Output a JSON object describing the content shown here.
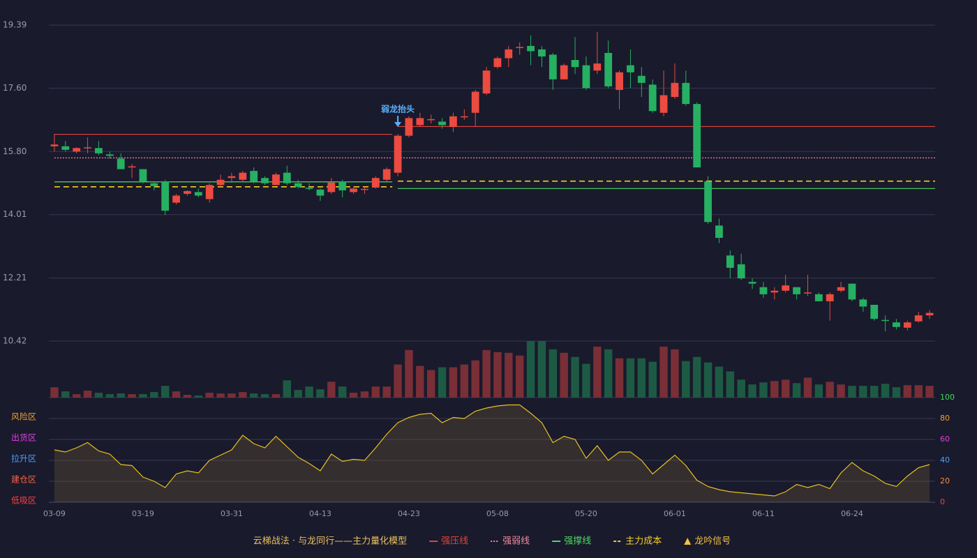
{
  "chart_data": {
    "type": "candlestick",
    "categories": [
      "03-09",
      null,
      null,
      null,
      null,
      null,
      null,
      null,
      "03-19",
      null,
      null,
      null,
      null,
      null,
      null,
      null,
      "03-31",
      null,
      null,
      null,
      null,
      null,
      null,
      null,
      "04-13",
      null,
      null,
      null,
      null,
      null,
      null,
      null,
      "04-23",
      null,
      null,
      null,
      null,
      null,
      null,
      null,
      "05-08",
      null,
      null,
      null,
      null,
      null,
      null,
      null,
      "05-20",
      null,
      null,
      null,
      null,
      null,
      null,
      null,
      "06-01",
      null,
      null,
      null,
      null,
      null,
      null,
      null,
      "06-11",
      null,
      null,
      null,
      null,
      null,
      null,
      null,
      "06-24",
      null,
      null,
      null,
      null,
      null,
      null,
      null
    ],
    "open": [
      15.95,
      15.95,
      15.8,
      15.9,
      15.9,
      15.72,
      15.6,
      15.35,
      15.3,
      14.9,
      14.95,
      14.35,
      14.6,
      14.65,
      14.45,
      14.85,
      15.05,
      15.0,
      15.25,
      15.05,
      14.85,
      15.2,
      14.9,
      14.77,
      14.72,
      14.65,
      14.95,
      14.65,
      14.72,
      14.78,
      15.0,
      15.2,
      16.25,
      16.55,
      16.7,
      16.65,
      16.5,
      16.78,
      16.9,
      17.45,
      18.2,
      18.45,
      18.75,
      18.8,
      18.7,
      18.55,
      17.85,
      18.4,
      18.25,
      18.1,
      18.6,
      17.55,
      18.25,
      17.95,
      17.7,
      16.9,
      17.35,
      17.75,
      17.15,
      14.95,
      13.7,
      12.85,
      12.6,
      12.1,
      11.95,
      11.8,
      11.85,
      11.95,
      11.78,
      11.75,
      11.55,
      11.85,
      12.05,
      11.6,
      11.45,
      11.02,
      10.95,
      10.8,
      10.98,
      11.15
    ],
    "high": [
      16.3,
      16.1,
      15.92,
      16.2,
      16.1,
      15.8,
      15.75,
      15.45,
      15.3,
      14.95,
      15.0,
      14.6,
      14.7,
      14.75,
      14.9,
      15.15,
      15.2,
      15.25,
      15.35,
      15.1,
      15.2,
      15.4,
      15.0,
      14.9,
      14.75,
      15.05,
      15.0,
      14.8,
      14.8,
      15.1,
      15.35,
      16.3,
      16.8,
      16.9,
      16.85,
      16.75,
      16.9,
      17.0,
      17.55,
      18.2,
      18.5,
      18.8,
      18.9,
      19.1,
      18.8,
      18.6,
      18.3,
      19.05,
      18.5,
      19.2,
      18.95,
      18.1,
      18.7,
      18.2,
      17.85,
      18.1,
      18.3,
      18.1,
      17.2,
      15.1,
      13.9,
      13.0,
      12.9,
      12.2,
      12.1,
      11.95,
      12.3,
      11.95,
      12.3,
      11.8,
      11.8,
      12.1,
      12.05,
      11.65,
      11.45,
      11.15,
      11.05,
      11.0,
      11.25,
      11.3
    ],
    "low": [
      15.8,
      15.8,
      15.75,
      15.75,
      15.7,
      15.6,
      15.3,
      15.05,
      14.9,
      14.7,
      14.0,
      14.3,
      14.55,
      14.5,
      14.35,
      14.8,
      14.95,
      14.95,
      14.9,
      14.85,
      14.85,
      14.85,
      14.75,
      14.7,
      14.4,
      14.6,
      14.5,
      14.6,
      14.6,
      14.75,
      14.95,
      15.1,
      16.2,
      16.5,
      16.6,
      16.45,
      16.35,
      16.7,
      16.5,
      17.4,
      18.15,
      18.2,
      18.55,
      18.25,
      18.2,
      17.55,
      17.85,
      18.0,
      17.55,
      18.0,
      17.6,
      17.0,
      17.6,
      17.35,
      16.9,
      16.8,
      17.3,
      17.1,
      15.35,
      13.75,
      13.2,
      12.2,
      12.15,
      11.9,
      11.65,
      11.6,
      11.8,
      11.6,
      11.7,
      11.55,
      11.0,
      11.8,
      11.55,
      11.25,
      11.0,
      10.7,
      10.75,
      10.72,
      10.95,
      11.05
    ],
    "close": [
      16.0,
      15.85,
      15.9,
      15.92,
      15.75,
      15.68,
      15.3,
      15.38,
      14.95,
      14.82,
      14.12,
      14.55,
      14.68,
      14.55,
      14.85,
      15.0,
      15.1,
      15.2,
      14.95,
      14.9,
      15.15,
      14.9,
      14.8,
      14.75,
      14.55,
      14.92,
      14.7,
      14.75,
      14.74,
      15.05,
      15.3,
      16.25,
      16.75,
      16.75,
      16.72,
      16.55,
      16.8,
      16.8,
      17.5,
      18.1,
      18.45,
      18.7,
      18.77,
      18.65,
      18.5,
      17.85,
      18.25,
      18.2,
      17.6,
      18.3,
      17.65,
      18.05,
      18.05,
      17.75,
      16.95,
      17.4,
      17.75,
      17.15,
      15.35,
      13.8,
      13.35,
      12.5,
      12.2,
      12.05,
      11.75,
      11.85,
      12.0,
      11.75,
      11.8,
      11.55,
      11.75,
      11.95,
      11.6,
      11.4,
      11.05,
      11.0,
      10.82,
      10.95,
      11.15,
      11.22
    ],
    "up_color": "#eb4b40",
    "down_color": "#26b062",
    "ylim": [
      10.42,
      19.39
    ],
    "yticks": [
      10.42,
      12.21,
      14.01,
      {
        "value": 15.8,
        "label": "15.80"
      },
      {
        "value": 17.6,
        "label": "17.60"
      },
      19.39
    ],
    "grid": true,
    "volume": [
      15,
      9,
      5,
      10,
      7,
      5,
      6,
      5,
      5,
      8,
      17,
      9,
      4,
      3,
      7,
      6,
      6,
      8,
      6,
      5,
      5,
      25,
      11,
      16,
      12,
      23,
      16,
      7,
      9,
      16,
      16,
      48,
      69,
      46,
      40,
      44,
      44,
      48,
      54,
      69,
      66,
      65,
      61,
      82,
      82,
      70,
      65,
      59,
      49,
      74,
      70,
      57,
      57,
      57,
      52,
      74,
      70,
      53,
      59,
      51,
      45,
      38,
      26,
      19,
      22,
      24,
      26,
      21,
      29,
      19,
      23,
      19,
      17,
      17,
      17,
      20,
      15,
      18,
      18,
      17
    ],
    "volume_ylim": [
      0,
      82
    ],
    "volume_up_color": "#7a2e36",
    "volume_down_color": "#1d5a44",
    "levels": [
      {
        "name": "强压线",
        "color": "#e0443c",
        "style": "solid",
        "segments": [
          {
            "start": 0,
            "end": 30,
            "value": 16.29
          },
          {
            "start": 31,
            "end": 79,
            "value": 16.51
          }
        ]
      },
      {
        "name": "强弱线",
        "color": "#f08a9a",
        "style": "dotted",
        "segments": [
          {
            "start": 0,
            "end": 30,
            "value": 15.62
          },
          {
            "start": 31,
            "end": 79,
            "value": 15.62
          }
        ]
      },
      {
        "name": "强撑线",
        "color": "#4fd860",
        "style": "solid",
        "segments": [
          {
            "start": 0,
            "end": 30,
            "value": 14.94
          },
          {
            "start": 31,
            "end": 79,
            "value": 14.75
          }
        ]
      },
      {
        "name": "主力成本",
        "color": "#f5d020",
        "style": "dashed",
        "segments": [
          {
            "start": 0,
            "end": 30,
            "value": 14.8
          },
          {
            "start": 31,
            "end": 79,
            "value": 14.96
          }
        ]
      }
    ],
    "signal": {
      "name": "龙吟信号",
      "color": "#f5c040"
    },
    "annotation": {
      "text": "弱龙抬头",
      "index": 31,
      "value": 16.3,
      "color": "#5ab0ff"
    },
    "indicator": {
      "name": "云梯战法 · 与龙同行——主力量化模型",
      "color": "#e8c020",
      "values": [
        50,
        48,
        52,
        57,
        49,
        46,
        36,
        35,
        24,
        20,
        14,
        27,
        30,
        28,
        40,
        45,
        50,
        64,
        56,
        52,
        63,
        53,
        43,
        37,
        30,
        46,
        39,
        41,
        40,
        52,
        65,
        76,
        81,
        84,
        85,
        76,
        81,
        80,
        87,
        90,
        92,
        93,
        93,
        85,
        76,
        57,
        63,
        60,
        42,
        54,
        40,
        48,
        48,
        40,
        27,
        36,
        45,
        35,
        21,
        15,
        12,
        10,
        9,
        8,
        7,
        6,
        10,
        17,
        14,
        17,
        13,
        28,
        38,
        30,
        25,
        18,
        15,
        25,
        33,
        36
      ],
      "ylim": [
        0,
        100
      ],
      "yticks": [
        0,
        20,
        40,
        60,
        80,
        100
      ],
      "ytick_colors": [
        "#ff4040",
        "#ff8c3a",
        "#4aa0ff",
        "#e040e0",
        "#f0a030",
        "#3fdc5a"
      ],
      "zones": [
        {
          "label": "风险区",
          "value": 80,
          "color": "#f0a030"
        },
        {
          "label": "出货区",
          "value": 60,
          "color": "#e040e0"
        },
        {
          "label": "拉升区",
          "value": 40,
          "color": "#4aa0ff"
        },
        {
          "label": "建仓区",
          "value": 20,
          "color": "#ff6040"
        },
        {
          "label": "低吸区",
          "value": 0,
          "color": "#ff4040"
        }
      ]
    }
  }
}
